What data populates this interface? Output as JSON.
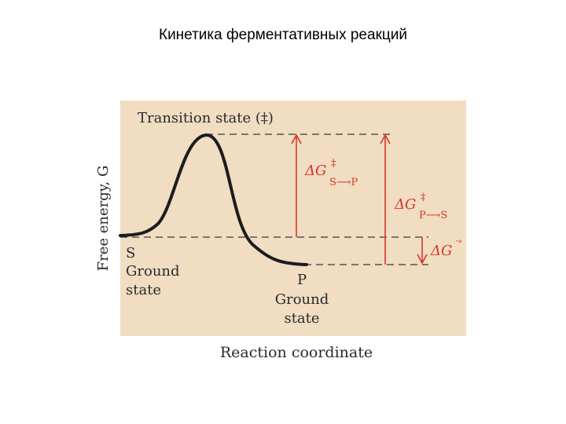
{
  "slide": {
    "title": "Кинетика ферментативных реакций"
  },
  "figure": {
    "y_axis_label": "Free energy, G",
    "x_axis_label": "Reaction coordinate",
    "transition_state_label": "Transition state (‡)",
    "substrate": {
      "symbol": "S",
      "line1": "Ground",
      "line2": "state"
    },
    "product": {
      "symbol": "P",
      "line1": "Ground",
      "line2": "state"
    },
    "dg_forward": {
      "main": "ΔG",
      "sup": "‡",
      "sub": "S⟶P"
    },
    "dg_reverse": {
      "main": "ΔG",
      "sup": "‡",
      "sub": "P⟶S"
    },
    "dg_standard": {
      "main": "ΔG",
      "sup": "′°"
    },
    "colors": {
      "panel": "#f0ddc2",
      "curve": "#1c1c1c",
      "arrows": "#d9362b",
      "dashes": "#3a3a3a",
      "text": "#2a2a2a"
    }
  }
}
